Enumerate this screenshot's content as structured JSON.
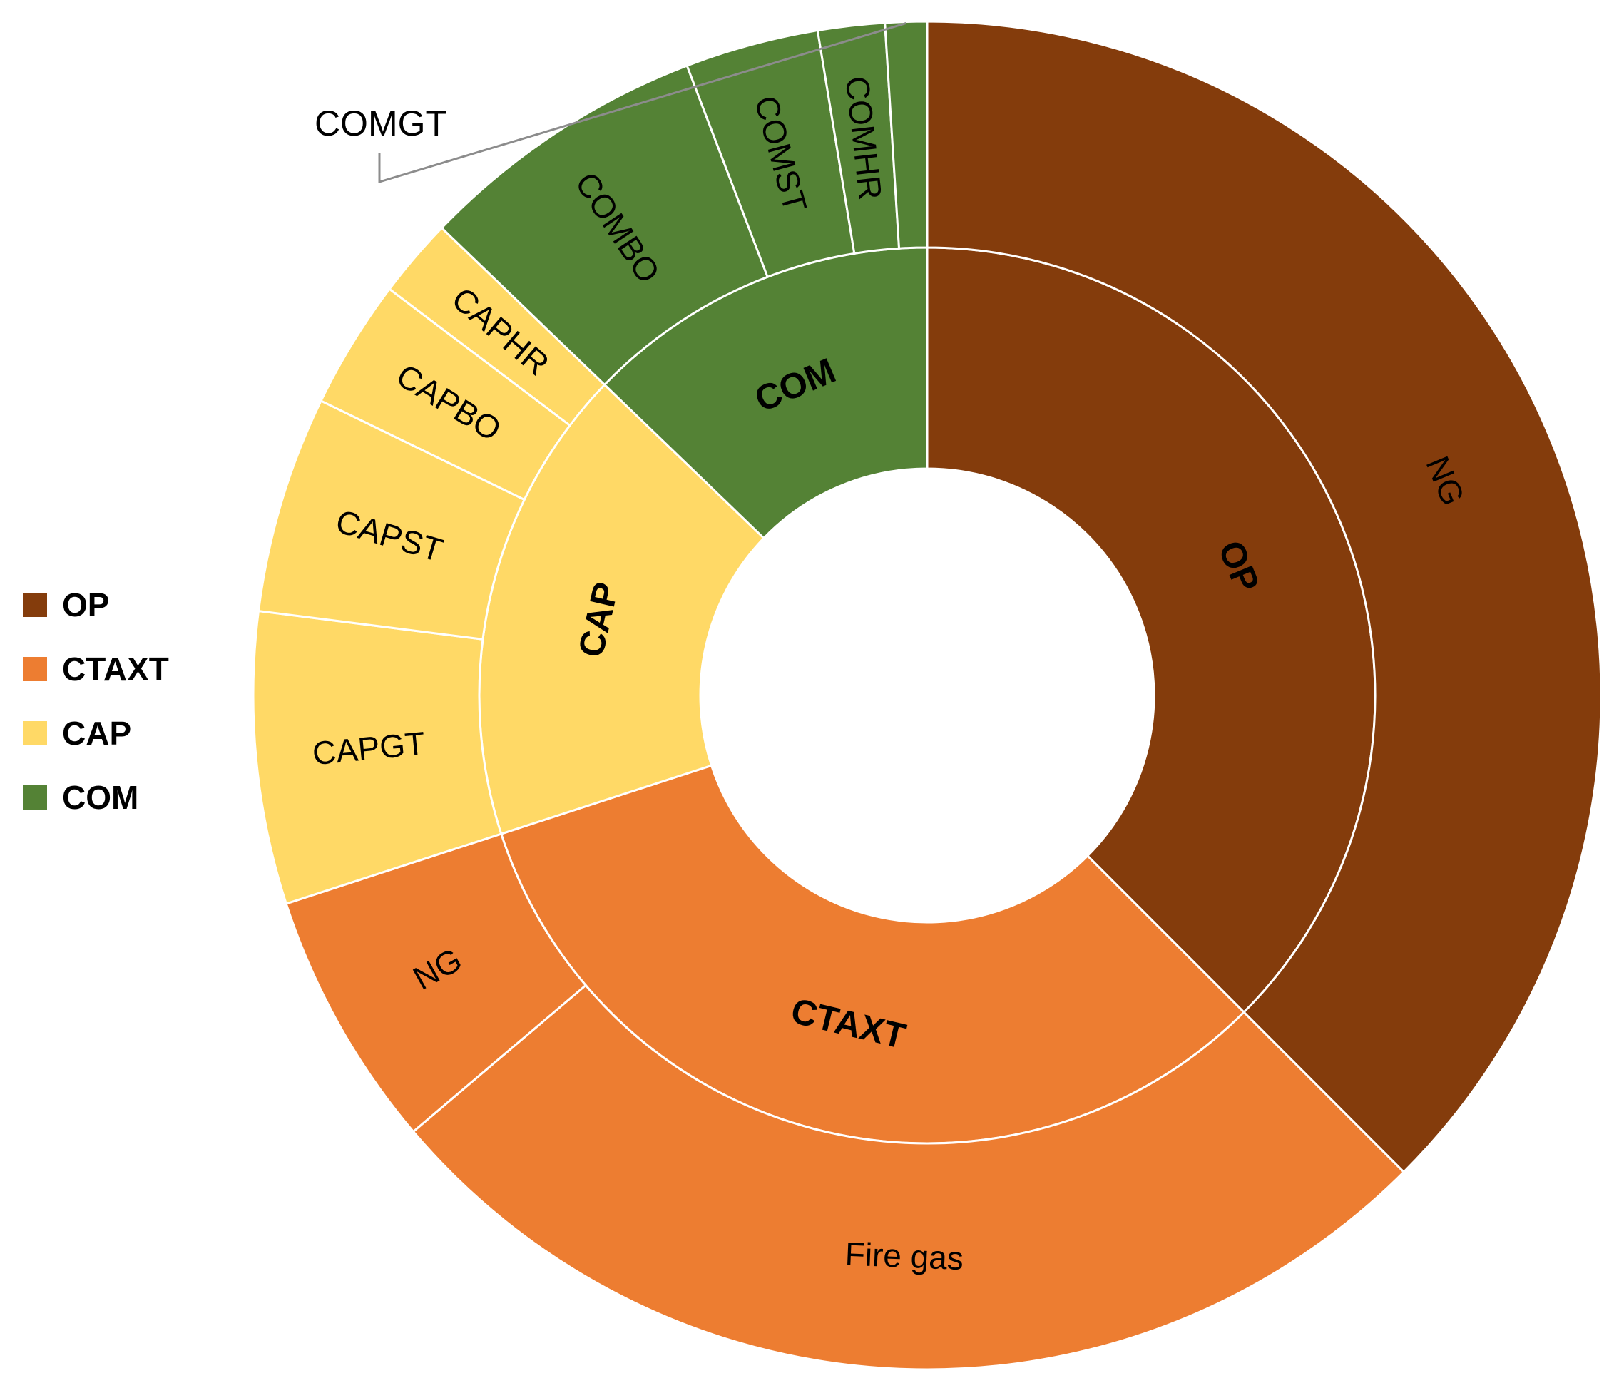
{
  "chart_data": {
    "type": "sunburst",
    "title": "",
    "legend_position": "left",
    "categories": [
      {
        "name": "OP",
        "color": "#843C0C",
        "value": 37.5,
        "children": [
          {
            "name": "NG",
            "value": 37.5
          }
        ]
      },
      {
        "name": "CTAXT",
        "color": "#ED7D31",
        "value": 32.5,
        "children": [
          {
            "name": "Fire gas",
            "value": 26.3
          },
          {
            "name": "NG",
            "value": 6.2
          }
        ]
      },
      {
        "name": "CAP",
        "color": "#FFD966",
        "value": 17.2,
        "children": [
          {
            "name": "CAPGT",
            "value": 7.0
          },
          {
            "name": "CAPST",
            "value": 5.2
          },
          {
            "name": "CAPBO",
            "value": 3.1
          },
          {
            "name": "CAPHR",
            "value": 1.9
          }
        ]
      },
      {
        "name": "COM",
        "color": "#548235",
        "value": 12.8,
        "children": [
          {
            "name": "COMBO",
            "value": 7.0
          },
          {
            "name": "COMST",
            "value": 3.2
          },
          {
            "name": "COMHR",
            "value": 1.6
          },
          {
            "name": "COMGT",
            "value": 1.0
          }
        ]
      }
    ]
  }
}
